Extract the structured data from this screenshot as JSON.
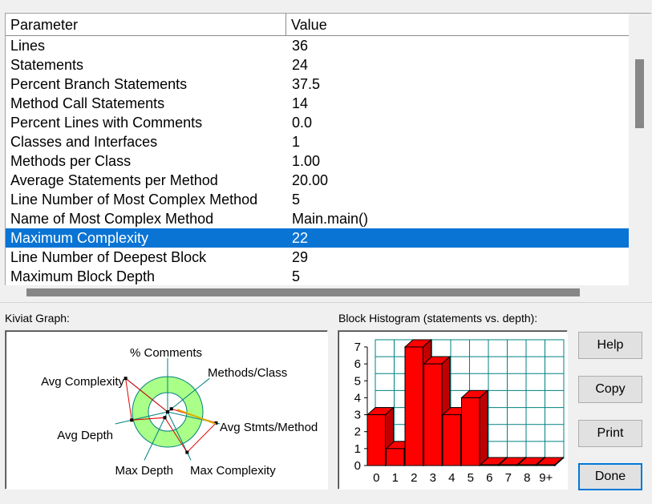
{
  "table": {
    "header": {
      "parameter": "Parameter",
      "value": "Value"
    },
    "rows": [
      {
        "parameter": "Lines",
        "value": "36"
      },
      {
        "parameter": "Statements",
        "value": "24"
      },
      {
        "parameter": "Percent Branch Statements",
        "value": "37.5"
      },
      {
        "parameter": "Method Call Statements",
        "value": "14"
      },
      {
        "parameter": "Percent Lines with Comments",
        "value": "0.0"
      },
      {
        "parameter": "Classes and Interfaces",
        "value": "1"
      },
      {
        "parameter": "Methods per Class",
        "value": "1.00"
      },
      {
        "parameter": "Average Statements per Method",
        "value": "20.00"
      },
      {
        "parameter": "Line Number of Most Complex Method",
        "value": "5"
      },
      {
        "parameter": "Name of Most Complex Method",
        "value": "Main.main()"
      },
      {
        "parameter": "Maximum Complexity",
        "value": "22",
        "selected": true
      },
      {
        "parameter": "Line Number of Deepest Block",
        "value": "29"
      },
      {
        "parameter": "Maximum Block Depth",
        "value": "5"
      }
    ]
  },
  "kiviat": {
    "label": "Kiviat Graph:",
    "axes": [
      "% Comments",
      "Methods/Class",
      "Avg Stmts/Method",
      "Max Complexity",
      "Max Depth",
      "Avg Depth",
      "Avg Complexity"
    ],
    "colors": {
      "band": "#aaff88",
      "axis": "#008080",
      "polygon": "#e00000"
    }
  },
  "histogram": {
    "label": "Block Histogram (statements vs. depth):",
    "colors": {
      "bar": "#ff0000",
      "grid": "#008080"
    }
  },
  "buttons": {
    "help": "Help",
    "copy": "Copy",
    "print": "Print",
    "done": "Done"
  },
  "chart_data": {
    "type": "bar",
    "title": "Block Histogram (statements vs. depth):",
    "categories": [
      "0",
      "1",
      "2",
      "3",
      "4",
      "5",
      "6",
      "7",
      "8",
      "9+"
    ],
    "values": [
      3,
      1,
      7,
      6,
      3,
      4,
      0,
      0,
      0,
      0
    ],
    "ylim": [
      0,
      7
    ],
    "yticks": [
      "0",
      "1",
      "2",
      "3",
      "4",
      "5",
      "6",
      "7"
    ],
    "grid": true
  }
}
